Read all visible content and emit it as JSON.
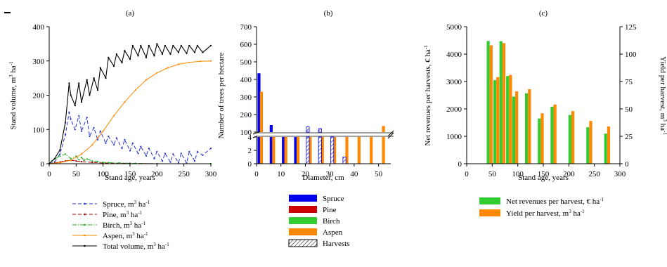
{
  "chart_data": [
    {
      "panel": "(a)",
      "type": "line",
      "xlabel": "Stand age, years",
      "ylabel": "Stand volume, m",
      "ylabel_sup": "3",
      "ylabel_tail": " ha",
      "ylabel_sup2": "-1",
      "xlim": [
        0,
        300
      ],
      "ylim": [
        0,
        400
      ],
      "xticks": [
        0,
        50,
        100,
        150,
        200,
        250,
        300
      ],
      "yticks": [
        0,
        100,
        200,
        300,
        400
      ],
      "series": [
        {
          "name": "Spruce, m",
          "sup": "3",
          "tail": " ha",
          "sup2": "-1",
          "color": "#2233cc",
          "dash": "5,3",
          "marker": true,
          "x": [
            0,
            10,
            20,
            30,
            37,
            40,
            48,
            55,
            60,
            70,
            75,
            83,
            90,
            95,
            105,
            110,
            120,
            125,
            135,
            140,
            150,
            155,
            165,
            170,
            180,
            185,
            195,
            200,
            210,
            215,
            225,
            230,
            240,
            245,
            255,
            260,
            270,
            275,
            285,
            300
          ],
          "y": [
            0,
            5,
            28,
            85,
            150,
            130,
            100,
            140,
            95,
            135,
            80,
            105,
            70,
            95,
            60,
            80,
            55,
            75,
            45,
            70,
            38,
            60,
            30,
            50,
            23,
            45,
            15,
            35,
            8,
            30,
            5,
            28,
            3,
            30,
            2,
            35,
            8,
            35,
            25,
            45
          ]
        },
        {
          "name": "Pine, m",
          "sup": "3",
          "tail": " ha",
          "sup2": "-1",
          "color": "#990000",
          "dash": "5,3",
          "marker": true,
          "x": [
            0,
            10,
            20,
            30,
            40,
            50,
            60,
            80,
            100,
            150,
            200,
            300
          ],
          "y": [
            0,
            2,
            5,
            8,
            10,
            8,
            6,
            4,
            2,
            1,
            0,
            0
          ]
        },
        {
          "name": "Birch, m",
          "sup": "3",
          "tail": " ha",
          "sup2": "-1",
          "color": "#22aa22",
          "dash": "6,2,1,2",
          "marker": true,
          "x": [
            0,
            5,
            10,
            20,
            30,
            40,
            50,
            55,
            60,
            65,
            70,
            80,
            90,
            100,
            110,
            130,
            160,
            200,
            300
          ],
          "y": [
            0,
            8,
            14,
            22,
            28,
            15,
            22,
            12,
            18,
            10,
            14,
            8,
            6,
            4,
            3,
            2,
            1,
            0,
            0
          ]
        },
        {
          "name": "Aspen, m",
          "sup": "3",
          "tail": " ha",
          "sup2": "-1",
          "color": "#ff8800",
          "dash": "",
          "marker": true,
          "x": [
            0,
            20,
            40,
            60,
            80,
            100,
            120,
            140,
            160,
            180,
            200,
            220,
            240,
            260,
            280,
            300
          ],
          "y": [
            0,
            3,
            10,
            28,
            55,
            95,
            140,
            180,
            215,
            245,
            265,
            280,
            290,
            296,
            299,
            300
          ]
        },
        {
          "name": "Total volume, m",
          "sup": "3",
          "tail": " ha",
          "sup2": "-1",
          "color": "#000000",
          "dash": "",
          "marker": true,
          "x": [
            0,
            10,
            20,
            30,
            37,
            40,
            48,
            55,
            60,
            70,
            75,
            83,
            90,
            95,
            105,
            110,
            120,
            125,
            135,
            140,
            150,
            155,
            165,
            170,
            180,
            185,
            195,
            200,
            210,
            215,
            225,
            230,
            240,
            245,
            255,
            260,
            270,
            275,
            285,
            300
          ],
          "y": [
            0,
            15,
            40,
            120,
            235,
            200,
            170,
            235,
            180,
            245,
            200,
            250,
            215,
            280,
            250,
            310,
            285,
            320,
            295,
            330,
            305,
            345,
            315,
            345,
            310,
            345,
            315,
            350,
            320,
            345,
            320,
            345,
            325,
            345,
            322,
            345,
            325,
            345,
            325,
            345
          ]
        }
      ]
    },
    {
      "panel": "(b)",
      "type": "bar",
      "xlabel": "Diameter, cm",
      "ylabel": "Number of trees per hectare",
      "xlim": [
        0,
        55
      ],
      "xticks": [
        0,
        10,
        20,
        30,
        40,
        50
      ],
      "ylim_lower": [
        0,
        4
      ],
      "yticks_lower": [
        0,
        2,
        4
      ],
      "ylim_upper": [
        100,
        700
      ],
      "yticks_upper": [
        100,
        200,
        300,
        400,
        500,
        600,
        700
      ],
      "series": [
        {
          "name": "Spruce",
          "color": "#0000ee",
          "hatched": false,
          "x": [
            1,
            6,
            11,
            16
          ],
          "y": [
            435,
            140,
            100,
            85
          ]
        },
        {
          "name": "Pine",
          "color": "#cc0000",
          "hatched": false,
          "x": [],
          "y": []
        },
        {
          "name": "Birch",
          "color": "#33cc33",
          "hatched": false,
          "x": [],
          "y": []
        },
        {
          "name": "Aspen",
          "color": "#ff8800",
          "hatched": false,
          "x": [
            2,
            7,
            12,
            17,
            22,
            27,
            32,
            37,
            42,
            47,
            52
          ],
          "y": [
            330,
            100,
            100,
            100,
            100,
            100,
            100,
            4,
            4,
            4,
            135
          ]
        },
        {
          "name": "Harvests",
          "color": "#0000ee",
          "hatched": true,
          "x": [
            21,
            26,
            31,
            36
          ],
          "y": [
            130,
            120,
            100,
            1
          ]
        }
      ]
    },
    {
      "panel": "(c)",
      "type": "bar",
      "xlabel": "Stand age, years",
      "ylabel": "Net revenues per harvests, € ha",
      "ylabel_sup": "-1",
      "y2label": "Yield per harvest, m",
      "y2label_sup": "3",
      "y2label_tail": " ha",
      "y2label_sup2": "-1",
      "xlim": [
        0,
        300
      ],
      "xticks": [
        0,
        50,
        100,
        150,
        200,
        250,
        300
      ],
      "ylim": [
        0,
        5000
      ],
      "yticks": [
        0,
        1000,
        2000,
        3000,
        4000,
        5000
      ],
      "y2lim": [
        0,
        125
      ],
      "y2ticks": [
        0,
        25,
        50,
        75,
        100,
        125
      ],
      "x": [
        45,
        58,
        70,
        83,
        95,
        120,
        145,
        170,
        205,
        240,
        275
      ],
      "series": [
        {
          "name": "Net revenues per harvest, €",
          "tail": " ha",
          "sup": "-1",
          "color": "#33cc33",
          "axis": "left",
          "values": [
            4480,
            3050,
            4470,
            3200,
            2450,
            2570,
            1650,
            2080,
            1780,
            1330,
            1100
          ]
        },
        {
          "name": "Yield per harvest, m",
          "sup": "3",
          "tail": " ha",
          "sup2": "-1",
          "color": "#ff8800",
          "axis": "right",
          "values": [
            108,
            79,
            110,
            81,
            66,
            68,
            46,
            54,
            48,
            39,
            34
          ]
        }
      ]
    }
  ]
}
